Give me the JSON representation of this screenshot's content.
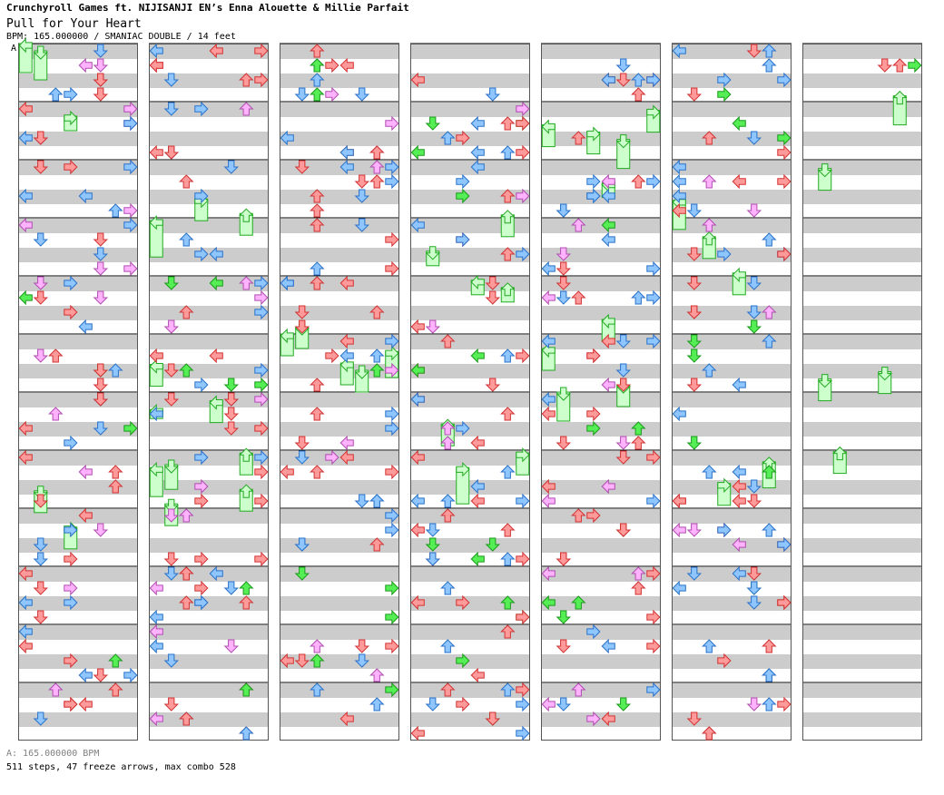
{
  "header": {
    "artist": "Crunchyroll Games ft. NIJISANJI EN’s Enna Alouette & Millie Parfait",
    "title": "Pull for Your Heart",
    "meta": "BPM: 165.000000 / SMANIAC DOUBLE / 14 feet"
  },
  "bpm_marker": "A",
  "footer": {
    "bpm": "A: 165.000000 BPM",
    "stats": "511 steps, 47 freeze arrows, max combo 528"
  },
  "colors": {
    "red_fill": "#ff9a9a",
    "red_stroke": "#d23232",
    "blue_fill": "#8fc6ff",
    "blue_stroke": "#2a72c8",
    "green_fill": "#55ee55",
    "green_stroke": "#1b9a1b",
    "pink_fill": "#ffb3ff",
    "pink_stroke": "#b04db0",
    "freeze_fill": "#ccffcc",
    "freeze_stroke": "#22aa22",
    "stripe": "#cccccc"
  },
  "chart_data": {
    "type": "step-chart",
    "style": "SMANIAC DOUBLE",
    "columns": 7,
    "panels": 8,
    "freezes": [
      [
        0,
        0,
        0.0,
        2.0
      ],
      [
        0,
        1,
        0.5,
        2.5
      ],
      [
        0,
        3,
        5.0,
        6.0
      ],
      [
        1,
        0,
        0.0,
        0.6
      ],
      [
        1,
        0,
        4.0,
        6.0
      ],
      [
        1,
        1,
        3.8,
        5.5
      ],
      [
        1,
        1,
        6.5,
        8.0
      ],
      [
        1,
        6,
        3.0,
        4.5
      ],
      [
        1,
        6,
        5.5,
        7.0
      ],
      [
        2,
        0,
        2.0,
        3.5
      ],
      [
        2,
        1,
        1.5,
        3.0
      ],
      [
        2,
        4,
        4.0,
        5.5
      ],
      [
        2,
        5,
        4.5,
        6.0
      ],
      [
        2,
        7,
        3.2,
        5.0
      ],
      [
        3,
        1,
        3.5,
        4.5
      ],
      [
        3,
        4,
        5.5,
        6.5
      ],
      [
        3,
        6,
        1.0,
        2.5
      ],
      [
        3,
        6,
        6.0,
        7.0
      ],
      [
        4,
        0,
        2.0,
        3.5
      ],
      [
        4,
        3,
        2.5,
        4.0
      ],
      [
        4,
        4,
        6.0,
        7.0
      ],
      [
        4,
        5,
        3.0,
        5.0
      ],
      [
        4,
        7,
        1.0,
        2.5
      ],
      [
        5,
        3,
        1.5,
        3.0
      ],
      [
        5,
        6,
        0.0,
        1.8
      ],
      [
        6,
        1,
        1.5,
        3.0
      ],
      [
        6,
        2,
        6.5,
        8.0
      ],
      [
        6,
        5,
        1.0,
        2.5
      ],
      [
        8,
        0,
        5.0,
        7.5
      ],
      [
        8,
        3,
        3.5,
        5.0
      ],
      [
        8,
        6,
        4.5,
        6.0
      ],
      [
        10,
        2,
        1.0,
        2.5
      ],
      [
        10,
        3,
        4.0,
        6.5
      ],
      [
        10,
        7,
        3.0,
        4.5
      ],
      [
        11,
        0,
        3.0,
        4.5
      ],
      [
        11,
        1,
        6.0,
        8.0
      ],
      [
        11,
        4,
        1.0,
        2.5
      ],
      [
        11,
        5,
        5.5,
        7.0
      ],
      [
        12,
        0,
        0.0,
        2.0
      ],
      [
        12,
        2,
        2.5,
        4.0
      ],
      [
        12,
        4,
        5.0,
        6.5
      ],
      [
        13,
        6,
        0.0,
        2.0
      ],
      [
        13,
        1,
        5.0,
        6.5
      ],
      [
        14,
        1,
        2.0,
        3.5
      ],
      [
        14,
        3,
        4.5,
        6.0
      ],
      [
        15,
        0,
        0.5,
        2.0
      ],
      [
        15,
        4,
        3.0,
        4.5
      ]
    ]
  }
}
